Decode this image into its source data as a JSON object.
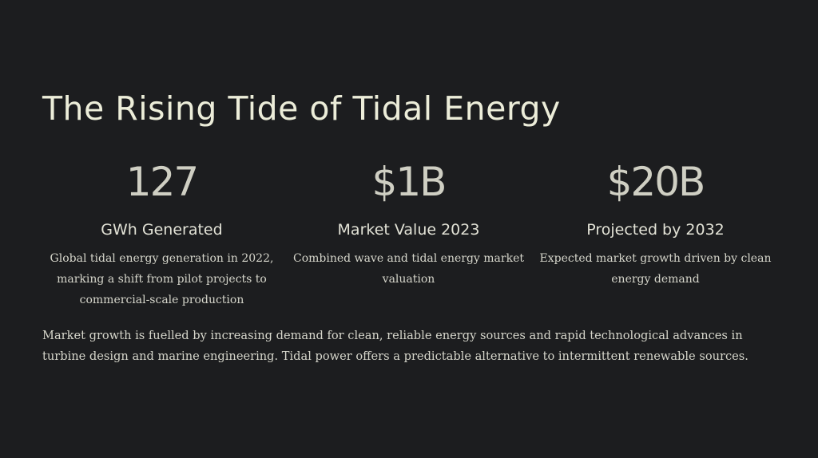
{
  "slide": {
    "title": "The Rising Tide of Tidal Energy",
    "stats": [
      {
        "value": "127",
        "label": "GWh Generated",
        "description": "Global tidal energy generation in 2022, marking a shift from pilot projects to commercial-scale production"
      },
      {
        "value": "$1B",
        "label": "Market Value 2023",
        "description": "Combined wave and tidal energy market valuation"
      },
      {
        "value": "$20B",
        "label": "Projected by 2032",
        "description": "Expected market growth driven by clean energy demand"
      }
    ],
    "body": "Market growth is fuelled by increasing demand for clean, reliable energy sources and rapid technological advances in turbine design and marine engineering. Tidal power offers a predictable alternative to intermittent renewable sources."
  }
}
